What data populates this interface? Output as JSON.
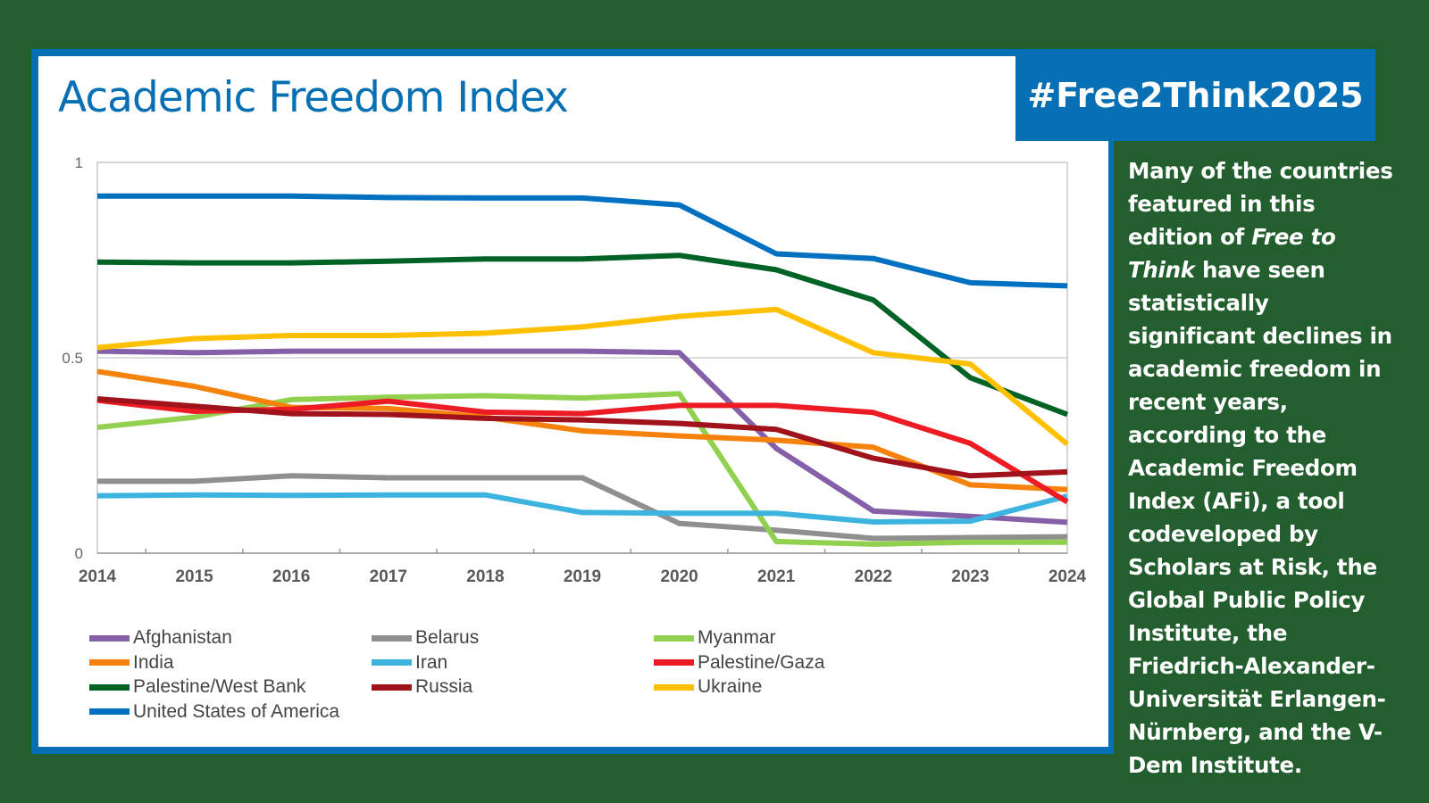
{
  "header": {
    "title": "Academic Freedom Index",
    "hashtag": "#Free2Think2025"
  },
  "sidebar": {
    "text_before": "Many of the countries featured in this edition of ",
    "italic": "Free to Think",
    "text_after": " have seen statistically significant declines in academic freedom in recent years, according to the Academic Freedom Index (AFi), a tool codeveloped by Scholars at Risk, the Global Public Policy Institute, the Friedrich-Alexander-Universität Erlangen-Nürnberg, and the V-Dem Institute."
  },
  "chart_data": {
    "type": "line",
    "title": "Academic Freedom Index",
    "xlabel": "",
    "ylabel": "",
    "x": [
      2014,
      2015,
      2016,
      2017,
      2018,
      2019,
      2020,
      2021,
      2022,
      2023,
      2024
    ],
    "ylim": [
      0,
      1
    ],
    "yticks": [
      "0",
      "0.5",
      "1"
    ],
    "grid": true,
    "legend": "bottom",
    "series": [
      {
        "name": "Afghanistan",
        "color": "#8560a8",
        "values": [
          0.517,
          0.513,
          0.517,
          0.517,
          0.517,
          0.517,
          0.513,
          0.268,
          0.108,
          0.094,
          0.079
        ]
      },
      {
        "name": "Belarus",
        "color": "#8f8f8f",
        "values": [
          0.184,
          0.184,
          0.198,
          0.193,
          0.193,
          0.193,
          0.076,
          0.059,
          0.038,
          0.04,
          0.042
        ]
      },
      {
        "name": "Myanmar",
        "color": "#92d050",
        "values": [
          0.322,
          0.348,
          0.393,
          0.399,
          0.403,
          0.397,
          0.408,
          0.03,
          0.023,
          0.028,
          0.028
        ]
      },
      {
        "name": "India",
        "color": "#f5820d",
        "values": [
          0.465,
          0.427,
          0.373,
          0.37,
          0.348,
          0.313,
          0.3,
          0.289,
          0.271,
          0.175,
          0.163
        ]
      },
      {
        "name": "Iran",
        "color": "#3db4e0",
        "values": [
          0.147,
          0.149,
          0.148,
          0.149,
          0.149,
          0.104,
          0.102,
          0.102,
          0.08,
          0.082,
          0.146
        ]
      },
      {
        "name": "Palestine/Gaza",
        "color": "#ed1c24",
        "values": [
          0.391,
          0.363,
          0.368,
          0.389,
          0.361,
          0.357,
          0.378,
          0.378,
          0.36,
          0.281,
          0.131
        ]
      },
      {
        "name": "Palestine/West Bank",
        "color": "#006325",
        "values": [
          0.745,
          0.743,
          0.743,
          0.747,
          0.753,
          0.753,
          0.762,
          0.725,
          0.648,
          0.449,
          0.355
        ]
      },
      {
        "name": "Russia",
        "color": "#a0131c",
        "values": [
          0.395,
          0.376,
          0.357,
          0.355,
          0.345,
          0.341,
          0.332,
          0.317,
          0.243,
          0.198,
          0.208
        ]
      },
      {
        "name": "Ukraine",
        "color": "#ffc000",
        "values": [
          0.526,
          0.549,
          0.557,
          0.557,
          0.563,
          0.579,
          0.606,
          0.624,
          0.513,
          0.484,
          0.279
        ]
      },
      {
        "name": "United States of America",
        "color": "#0070c0",
        "values": [
          0.914,
          0.914,
          0.914,
          0.91,
          0.909,
          0.909,
          0.891,
          0.766,
          0.754,
          0.692,
          0.684
        ]
      }
    ]
  }
}
